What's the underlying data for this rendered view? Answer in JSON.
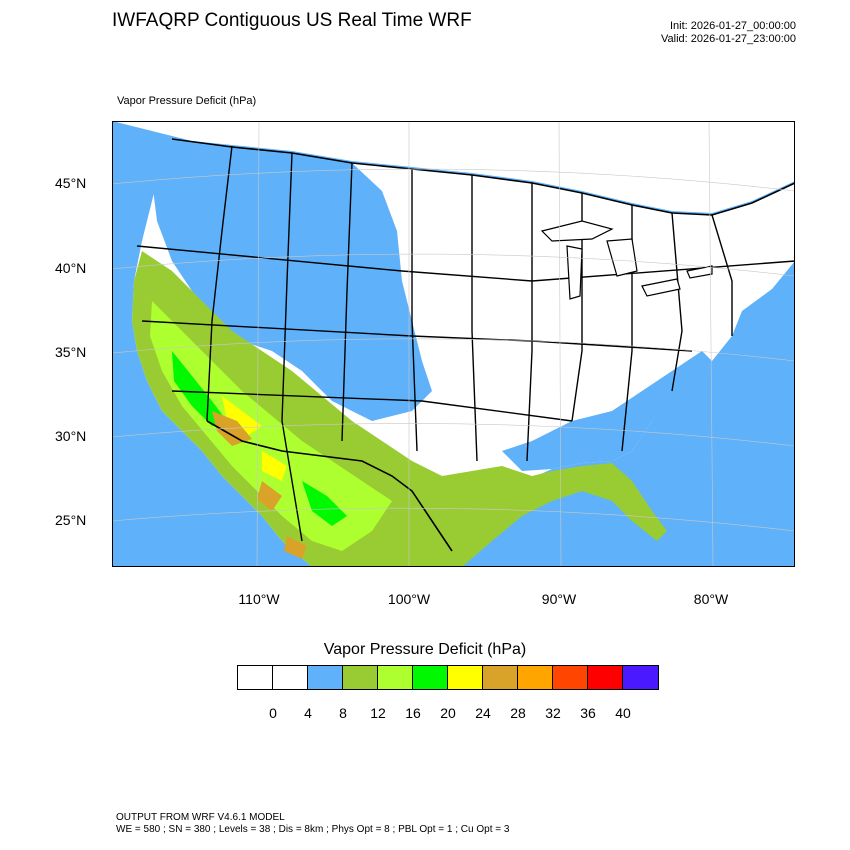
{
  "header": {
    "title": "IWFAQRP Contiguous US Real Time WRF",
    "init": "Init: 2026-01-27_00:00:00",
    "valid": "Valid: 2026-01-27_23:00:00"
  },
  "map": {
    "variable_label": "Vapor Pressure Deficit   (hPa)",
    "lat_labels": [
      "45°N",
      "40°N",
      "35°N",
      "30°N",
      "25°N"
    ],
    "lon_labels": [
      "110°W",
      "100°W",
      "90°W",
      "80°W"
    ],
    "colors": {
      "ocean": "#5fb1fa",
      "land_low": "#ffffff",
      "c4_8": "#5fb1fa",
      "c8_12": "#99cc33",
      "c12_16": "#adff2f",
      "c16_20": "#00f800",
      "c20_24": "#ffff00",
      "c24_28": "#d9a329",
      "c28_32": "#ffa500",
      "c32_36": "#ff4500",
      "c36_40": "#ff0000",
      "c40p": "#4b19ff"
    }
  },
  "colorbar": {
    "title": "Vapor Pressure Deficit  (hPa)",
    "colors": [
      "#ffffff",
      "#ffffff",
      "#5fb1fa",
      "#99cc33",
      "#adff2f",
      "#00f800",
      "#ffff00",
      "#d9a329",
      "#ffa500",
      "#ff4500",
      "#ff0000",
      "#4b19ff"
    ],
    "ticks": [
      "0",
      "4",
      "8",
      "12",
      "16",
      "20",
      "24",
      "28",
      "32",
      "36",
      "40"
    ]
  },
  "footer": {
    "line1": "OUTPUT FROM WRF V4.6.1 MODEL",
    "line2": "WE = 580 ; SN = 380 ; Levels = 38 ; Dis = 8km ; Phys Opt = 8 ; PBL Opt = 1 ; Cu Opt = 3"
  }
}
